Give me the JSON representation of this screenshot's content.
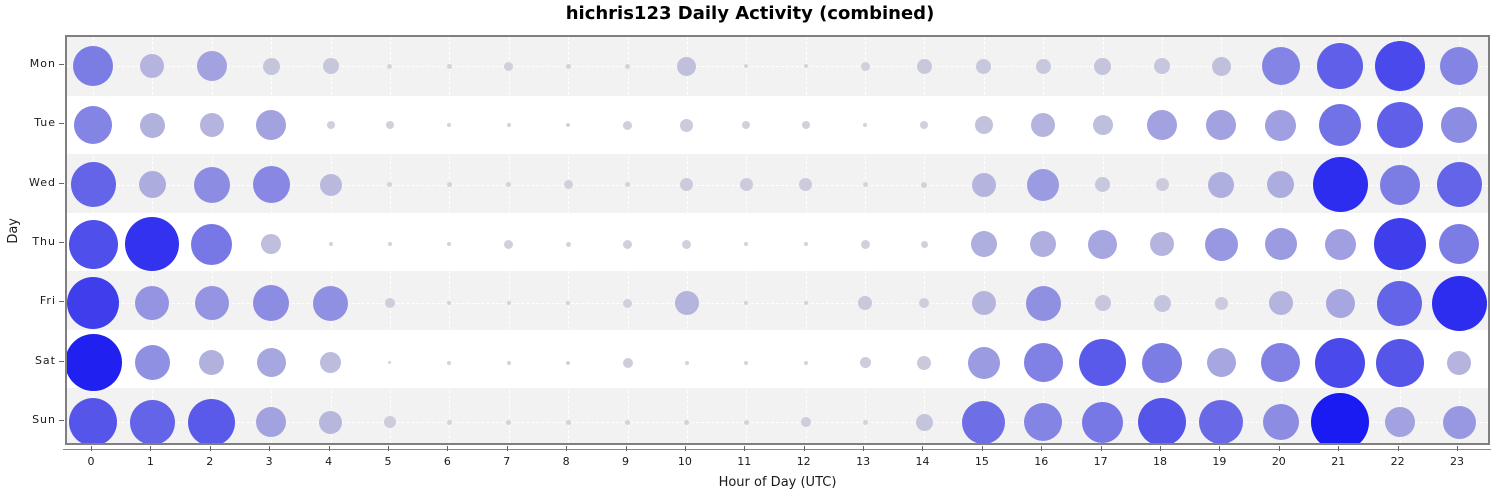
{
  "colors": {
    "bubble_min": "#d4d4da",
    "bubble_max": "#1a1af2",
    "row_band_gray": "#f2f2f2",
    "row_band_white": "#ffffff",
    "plot_border": "#7f7f7f",
    "grid": "#ffffff",
    "tick": "#666666",
    "text": "#1a1a1a"
  },
  "chart_data": {
    "type": "scatter",
    "subtype": "punchcard-bubble",
    "title": "hichris123 Daily Activity (combined)",
    "xlabel": "Hour of Day (UTC)",
    "ylabel": "Day",
    "x_ticks": [
      "0",
      "1",
      "2",
      "3",
      "4",
      "5",
      "6",
      "7",
      "8",
      "9",
      "10",
      "11",
      "12",
      "13",
      "14",
      "15",
      "16",
      "17",
      "18",
      "19",
      "20",
      "21",
      "22",
      "23"
    ],
    "categories_y": [
      "Mon",
      "Tue",
      "Wed",
      "Thu",
      "Fri",
      "Sat",
      "Sun"
    ],
    "value_encoding": "approximate bubble diameter in pixels; bubble area and blue color intensity both scale with activity count (no numeric labels shown in chart)",
    "max_diameter": 58,
    "grid": "dashed white on alternating gray/white day bands",
    "legend": "none",
    "series": [
      {
        "name": "Mon",
        "sizes": [
          40,
          24,
          30,
          17,
          16,
          5,
          5,
          9,
          5,
          5,
          19,
          4,
          4,
          9,
          15,
          15,
          15,
          17,
          16,
          19,
          38,
          46,
          50,
          38
        ]
      },
      {
        "name": "Tue",
        "sizes": [
          38,
          25,
          24,
          30,
          8,
          8,
          4,
          4,
          4,
          9,
          13,
          8,
          8,
          4,
          8,
          18,
          24,
          20,
          30,
          30,
          31,
          42,
          46,
          36
        ]
      },
      {
        "name": "Wed",
        "sizes": [
          45,
          27,
          36,
          37,
          22,
          5,
          5,
          5,
          9,
          5,
          13,
          13,
          13,
          5,
          6,
          24,
          32,
          15,
          13,
          26,
          27,
          55,
          40,
          45
        ]
      },
      {
        "name": "Thu",
        "sizes": [
          49,
          54,
          41,
          20,
          4,
          4,
          4,
          9,
          5,
          9,
          9,
          4,
          4,
          9,
          7,
          26,
          26,
          29,
          24,
          33,
          32,
          31,
          52,
          40
        ]
      },
      {
        "name": "Fri",
        "sizes": [
          52,
          34,
          34,
          36,
          35,
          10,
          4,
          4,
          4,
          9,
          24,
          4,
          4,
          14,
          10,
          24,
          35,
          16,
          17,
          13,
          24,
          29,
          45,
          55
        ]
      },
      {
        "name": "Sat",
        "sizes": [
          57,
          35,
          25,
          29,
          21,
          3,
          4,
          4,
          4,
          10,
          4,
          4,
          4,
          11,
          14,
          32,
          39,
          47,
          40,
          29,
          39,
          50,
          48,
          24
        ]
      },
      {
        "name": "Sun",
        "sizes": [
          48,
          45,
          47,
          30,
          23,
          12,
          5,
          5,
          5,
          5,
          5,
          5,
          10,
          5,
          17,
          43,
          38,
          41,
          48,
          44,
          36,
          58,
          30,
          33
        ]
      }
    ]
  }
}
